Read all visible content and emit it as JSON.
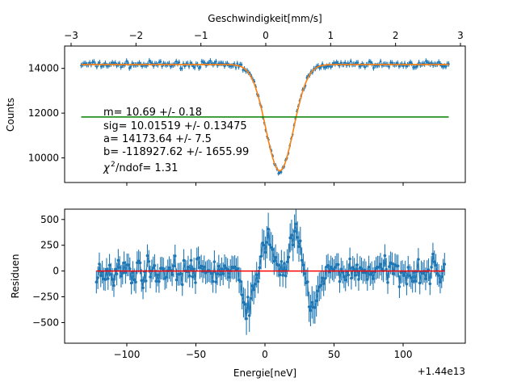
{
  "colors": {
    "data": "#1f77b4",
    "fit": "#ff7f0e",
    "baseline": "#008000",
    "zero_line": "#ff0000"
  },
  "chart_data": [
    {
      "type": "scatter",
      "panel": "top",
      "ylabel": "Counts",
      "top_axis_label": "Geschwindigkeit[mm/s]",
      "top_axis_ticks": [
        -3,
        -2,
        -1,
        0,
        1,
        2,
        3
      ],
      "top_axis_tick_labels": [
        "−3",
        "−2",
        "−1",
        "0",
        "1",
        "2",
        "3"
      ],
      "ylim": [
        8900,
        15000
      ],
      "y_ticks": [
        10000,
        12000,
        14000
      ],
      "y_tick_labels": [
        "10000",
        "12000",
        "14000"
      ],
      "xlim": [
        -145,
        145
      ],
      "x_data_range": [
        -133,
        133
      ],
      "error_bars": true,
      "fit": {
        "model": "baseline a minus Gaussian dip",
        "a": 14173.64,
        "center": 10.69,
        "sigma": 10.01519,
        "depth": 4750
      },
      "baseline_value": 11830,
      "annotations": [
        "m= 10.69 +/- 0.18",
        "sig= 10.01519 +/- 0.13475",
        "a= 14173.64 +/- 7.5",
        "b= -118927.62 +/- 1655.99"
      ],
      "chi2_label": "/ndof= 1.31",
      "grid": false
    },
    {
      "type": "scatter",
      "panel": "bottom",
      "ylabel": "Residuen",
      "xlabel": "Energie[neV]",
      "offset_label": "+1.44e13",
      "xlim": [
        -145,
        145
      ],
      "x_ticks": [
        -100,
        -50,
        0,
        50,
        100
      ],
      "x_tick_labels": [
        "−100",
        "−50",
        "0",
        "50",
        "100"
      ],
      "ylim": [
        -700,
        600
      ],
      "y_ticks": [
        -500,
        -250,
        0,
        250,
        500
      ],
      "y_tick_labels": [
        "−500",
        "−250",
        "0",
        "250",
        "500"
      ],
      "x_data_range": [
        -122,
        130
      ],
      "zero_line": 0,
      "error_bars": true,
      "grid": false
    }
  ]
}
